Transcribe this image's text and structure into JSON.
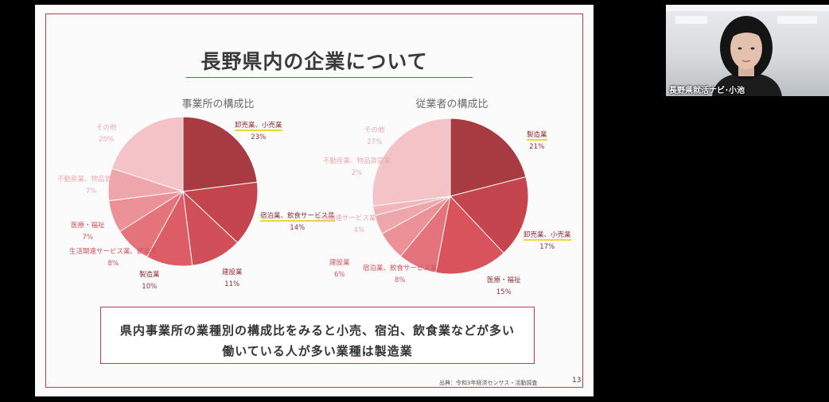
{
  "slide": {
    "title": "長野県内の企業について",
    "summary_line1": "県内事業所の業種別の構成比をみると小売、宿泊、飲食業などが多い",
    "summary_line2": "働いている人が多い業種は製造業",
    "source": "出典：令和3年経済センサス・活動調査",
    "page_number": "13"
  },
  "video": {
    "participant_name": "長野県就活ナビ･小池"
  },
  "chart_data": [
    {
      "type": "pie",
      "title": "事業所の構成比",
      "slices": [
        {
          "label": "卸売業、小売業",
          "value": 23,
          "value_label": "23%",
          "color": "#a83a42",
          "highlight": true
        },
        {
          "label": "宿泊業、飲食サービス業",
          "value": 14,
          "value_label": "14%",
          "color": "#c4454e",
          "highlight": true
        },
        {
          "label": "建設業",
          "value": 11,
          "value_label": "11%",
          "color": "#d14f58",
          "highlight": false
        },
        {
          "label": "製造業",
          "value": 10,
          "value_label": "10%",
          "color": "#dc5d66",
          "highlight": false
        },
        {
          "label": "生活関連サービス業、娯楽業",
          "value": 8,
          "value_label": "8%",
          "color": "#e4737b",
          "highlight": false
        },
        {
          "label": "医療・福祉",
          "value": 7,
          "value_label": "7%",
          "color": "#eb9197",
          "highlight": false
        },
        {
          "label": "不動産業、物品賃貸業",
          "value": 7,
          "value_label": "7%",
          "color": "#efa6ab",
          "highlight": false
        },
        {
          "label": "その他",
          "value": 20,
          "value_label": "20%",
          "color": "#f3c3c7",
          "highlight": false
        }
      ]
    },
    {
      "type": "pie",
      "title": "従業者の構成比",
      "slices": [
        {
          "label": "製造業",
          "value": 21,
          "value_label": "21%",
          "color": "#a83a42",
          "highlight": true
        },
        {
          "label": "卸売業、小売業",
          "value": 17,
          "value_label": "17%",
          "color": "#c4454e",
          "highlight": true
        },
        {
          "label": "医療・福祉",
          "value": 15,
          "value_label": "15%",
          "color": "#d8535c",
          "highlight": false
        },
        {
          "label": "宿泊業、飲食サービス業",
          "value": 8,
          "value_label": "8%",
          "color": "#e4737b",
          "highlight": false
        },
        {
          "label": "建設業",
          "value": 6,
          "value_label": "6%",
          "color": "#eb9197",
          "highlight": false
        },
        {
          "label": "生活関連サービス業、娯楽業",
          "value": 4,
          "value_label": "4%",
          "color": "#efa6ab",
          "highlight": false
        },
        {
          "label": "不動産業、物品賃貸業",
          "value": 2,
          "value_label": "2%",
          "color": "#f2b6ba",
          "highlight": false
        },
        {
          "label": "その他",
          "value": 27,
          "value_label": "27%",
          "color": "#f3c3c7",
          "highlight": false
        }
      ]
    }
  ]
}
